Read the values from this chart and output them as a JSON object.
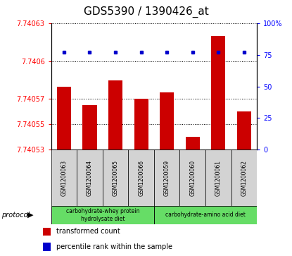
{
  "title": "GDS5390 / 1390426_at",
  "samples": [
    "GSM1200063",
    "GSM1200064",
    "GSM1200065",
    "GSM1200066",
    "GSM1200059",
    "GSM1200060",
    "GSM1200061",
    "GSM1200062"
  ],
  "bar_values": [
    7.74058,
    7.740565,
    7.740585,
    7.74057,
    7.740575,
    7.74054,
    7.74062,
    7.74056
  ],
  "percentile_values": [
    77,
    77,
    77,
    77,
    77,
    77,
    77,
    77
  ],
  "ylim_left": [
    7.74053,
    7.74063
  ],
  "ylim_right": [
    0,
    100
  ],
  "yticks_left": [
    7.74053,
    7.74055,
    7.74057,
    7.7406,
    7.74063
  ],
  "ytick_labels_left": [
    "7.74053",
    "7.74055",
    "7.74057",
    "7.7406",
    "7.74063"
  ],
  "yticks_right": [
    0,
    25,
    50,
    75,
    100
  ],
  "ytick_labels_right": [
    "0",
    "25",
    "50",
    "75",
    "100%"
  ],
  "bar_color": "#cc0000",
  "dot_color": "#0000cc",
  "grid_color": "#000000",
  "protocol_group1_samples": 4,
  "protocol_group2_samples": 4,
  "protocol_label1": "carbohydrate-whey protein\nhydrolysate diet",
  "protocol_label2": "carbohydrate-amino acid diet",
  "protocol_bg_color": "#66dd66",
  "sample_bg_color": "#d3d3d3",
  "legend_items": [
    "transformed count",
    "percentile rank within the sample"
  ],
  "legend_colors": [
    "#cc0000",
    "#0000cc"
  ],
  "protocol_text": "protocol",
  "title_fontsize": 11,
  "tick_label_fontsize": 7
}
